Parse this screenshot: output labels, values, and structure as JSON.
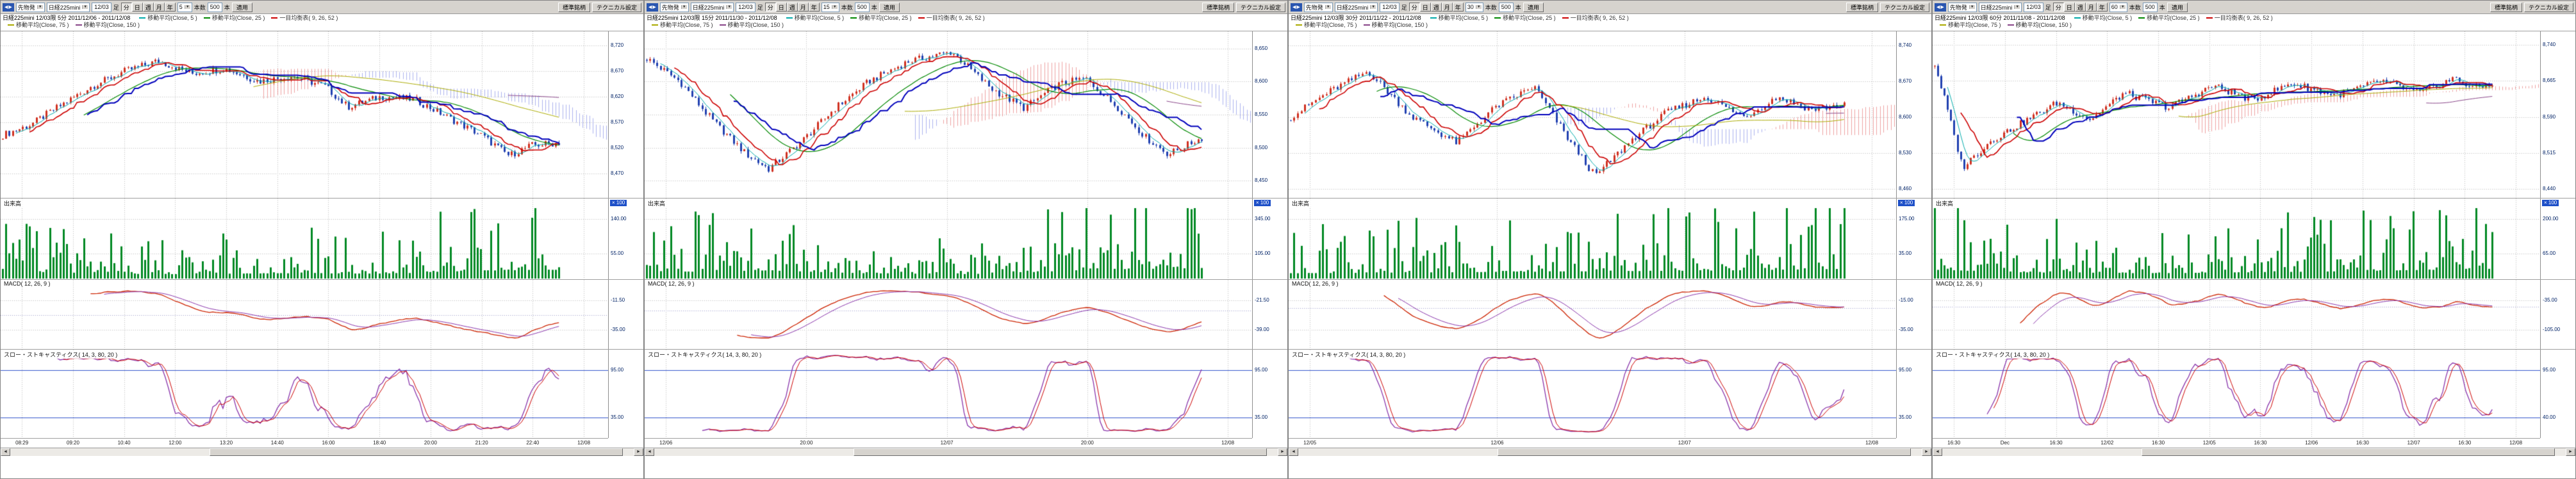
{
  "colors": {
    "up_candle": "#d03020",
    "down_candle": "#2040b0",
    "ma5": "#00aaaa",
    "ma25": "#008800",
    "ma75": "#aaaa00",
    "ma150": "#884488",
    "tenkan": "#cc0000",
    "kijun": "#0000bb",
    "cloud_up": "rgba(220,70,70,0.5)",
    "cloud_down": "rgba(90,100,220,0.5)",
    "volume": "#008822",
    "macd_line": "#cc2200",
    "macd_signal": "#8833aa",
    "stoch_k": "#8833aa",
    "stoch_d": "#cc0000",
    "level_line": "#3355cc",
    "grid": "#bcbcbc",
    "badge_bg": "#1e50c8"
  },
  "toolbar": {
    "nav_back": "◀",
    "nav_fwd": "▶",
    "category": "先物発",
    "date_value": "12/03",
    "ashi_label": "足",
    "period_buttons": [
      "分",
      "日",
      "週",
      "月",
      "年"
    ],
    "bars_label": "本数",
    "bars_value": "500",
    "bars_unit": "本",
    "apply_label": "適用",
    "preset_label": "標準銘柄",
    "settings_label": "テクニカル設定"
  },
  "section_labels": {
    "volume": "出来高",
    "macd": "MACD( 12, 26, 9 )",
    "stoch": "スロー・ストキャスティクス( 14, 3, 80, 20 )",
    "scale_badge": "× 100"
  },
  "legend_indicators": [
    {
      "label": "移動平均(Close, 5 )",
      "color": "#00aaaa"
    },
    {
      "label": "移動平均(Close, 25 )",
      "color": "#008800"
    },
    {
      "label": "一目均衡表( 9, 26, 52 )",
      "color": "#cc0000"
    },
    {
      "label": "移動平均(Close, 75 )",
      "color": "#aaaa00"
    },
    {
      "label": "移動平均(Close, 150 )",
      "color": "#884488"
    }
  ],
  "chart_data": {
    "note": "four linked candlestick chart windows of Nikkei 225 mini futures, Dec 2011 contract, at 5/15/30/60 minute timeframes with volume, MACD and slow stochastics panes"
  },
  "panels": [
    {
      "instrument": "日経225mini",
      "timeframe_value": "5",
      "title": "日経225mini 12/03限 5分 2011/12/06 - 2011/12/08",
      "price_range": [
        8430,
        8740
      ],
      "price_ticks": [
        "8,720",
        "8,670",
        "8,620",
        "8,570",
        "8,520",
        "8,470"
      ],
      "x_labels": [
        "08:29",
        "09:20",
        "10:40",
        "12:00",
        "13:20",
        "14:40",
        "16:00",
        "18:40",
        "20:00",
        "21:20",
        "22:40",
        "12/08"
      ],
      "vol_ticks": [
        "140.00",
        "55.00"
      ],
      "macd_ticks": [
        "-11.50",
        "-35.00"
      ],
      "stoch_ticks": [
        "95.00",
        "35.00"
      ],
      "n_candles": 165,
      "close_anchors": [
        [
          0,
          8545
        ],
        [
          0.05,
          8565
        ],
        [
          0.1,
          8600
        ],
        [
          0.16,
          8640
        ],
        [
          0.22,
          8670
        ],
        [
          0.28,
          8690
        ],
        [
          0.34,
          8665
        ],
        [
          0.4,
          8675
        ],
        [
          0.46,
          8650
        ],
        [
          0.52,
          8660
        ],
        [
          0.58,
          8640
        ],
        [
          0.62,
          8600
        ],
        [
          0.68,
          8620
        ],
        [
          0.74,
          8615
        ],
        [
          0.8,
          8580
        ],
        [
          0.86,
          8545
        ],
        [
          0.91,
          8505
        ],
        [
          0.95,
          8525
        ],
        [
          1,
          8530
        ]
      ],
      "vol_anchors": [
        [
          0,
          0.55
        ],
        [
          0.1,
          0.3
        ],
        [
          0.3,
          0.25
        ],
        [
          0.5,
          0.3
        ],
        [
          0.7,
          0.28
        ],
        [
          0.85,
          0.45
        ],
        [
          1,
          0.5
        ]
      ]
    },
    {
      "instrument": "日経225mini",
      "timeframe_value": "15",
      "title": "日経225mini 12/03限 15分 2011/11/30 - 2011/12/08",
      "price_range": [
        8430,
        8670
      ],
      "price_ticks": [
        "8,650",
        "8,600",
        "8,550",
        "8,500",
        "8,450"
      ],
      "x_labels": [
        "12/06",
        "20:00",
        "12/07",
        "20:00",
        "12/08"
      ],
      "vol_ticks": [
        "345.00",
        "105.00"
      ],
      "macd_ticks": [
        "-21.50",
        "-39.00"
      ],
      "stoch_ticks": [
        "95.00",
        "35.00"
      ],
      "n_candles": 160,
      "close_anchors": [
        [
          0,
          8635
        ],
        [
          0.06,
          8600
        ],
        [
          0.12,
          8540
        ],
        [
          0.18,
          8490
        ],
        [
          0.22,
          8468
        ],
        [
          0.28,
          8510
        ],
        [
          0.34,
          8560
        ],
        [
          0.4,
          8600
        ],
        [
          0.47,
          8630
        ],
        [
          0.55,
          8645
        ],
        [
          0.62,
          8590
        ],
        [
          0.68,
          8560
        ],
        [
          0.74,
          8595
        ],
        [
          0.79,
          8605
        ],
        [
          0.85,
          8560
        ],
        [
          0.9,
          8515
        ],
        [
          0.94,
          8490
        ],
        [
          1,
          8515
        ]
      ],
      "vol_anchors": [
        [
          0,
          0.35
        ],
        [
          0.2,
          0.45
        ],
        [
          0.4,
          0.3
        ],
        [
          0.6,
          0.25
        ],
        [
          0.8,
          0.5
        ],
        [
          1,
          0.6
        ]
      ]
    },
    {
      "instrument": "日経225mini",
      "timeframe_value": "30",
      "title": "日経225mini 12/03限 30分 2011/11/22 - 2011/12/08",
      "price_range": [
        8450,
        8760
      ],
      "price_ticks": [
        "8,740",
        "8,670",
        "8,600",
        "8,530",
        "8,460"
      ],
      "x_labels": [
        "12/05",
        "12/06",
        "12/07",
        "12/08"
      ],
      "vol_ticks": [
        "175.00",
        "35.00"
      ],
      "macd_ticks": [
        "-15.00",
        "-35.00"
      ],
      "stoch_ticks": [
        "95.00",
        "35.00"
      ],
      "n_candles": 155,
      "close_anchors": [
        [
          0,
          8600
        ],
        [
          0.07,
          8650
        ],
        [
          0.14,
          8690
        ],
        [
          0.22,
          8600
        ],
        [
          0.3,
          8550
        ],
        [
          0.37,
          8620
        ],
        [
          0.44,
          8660
        ],
        [
          0.5,
          8560
        ],
        [
          0.55,
          8485
        ],
        [
          0.62,
          8560
        ],
        [
          0.68,
          8610
        ],
        [
          0.75,
          8640
        ],
        [
          0.82,
          8600
        ],
        [
          0.88,
          8640
        ],
        [
          0.94,
          8615
        ],
        [
          1,
          8625
        ]
      ],
      "vol_anchors": [
        [
          0,
          0.3
        ],
        [
          0.25,
          0.35
        ],
        [
          0.5,
          0.4
        ],
        [
          0.75,
          0.45
        ],
        [
          1,
          0.55
        ]
      ]
    },
    {
      "instrument": "日経225mini",
      "timeframe_value": "60",
      "title": "日経225mini 12/03限 60分 2011/11/08 - 2011/12/08",
      "price_range": [
        8430,
        8760
      ],
      "price_ticks": [
        "8,740",
        "8,665",
        "8,590",
        "8,515",
        "8,440"
      ],
      "x_labels": [
        "16:30",
        "Dec",
        "16:30",
        "12/02",
        "16:30",
        "12/05",
        "16:30",
        "12/06",
        "16:30",
        "12/07",
        "16:30",
        "12/08"
      ],
      "vol_ticks": [
        "200.00",
        "65.00"
      ],
      "macd_ticks": [
        "-35.00",
        "-105.00"
      ],
      "stoch_ticks": [
        "95.00",
        "40.00"
      ],
      "n_candles": 170,
      "close_anchors": [
        [
          0,
          8700
        ],
        [
          0.02,
          8620
        ],
        [
          0.05,
          8485
        ],
        [
          0.1,
          8540
        ],
        [
          0.16,
          8580
        ],
        [
          0.22,
          8620
        ],
        [
          0.28,
          8585
        ],
        [
          0.34,
          8640
        ],
        [
          0.42,
          8610
        ],
        [
          0.5,
          8655
        ],
        [
          0.57,
          8625
        ],
        [
          0.64,
          8660
        ],
        [
          0.72,
          8635
        ],
        [
          0.8,
          8665
        ],
        [
          0.87,
          8640
        ],
        [
          0.93,
          8670
        ],
        [
          0.97,
          8650
        ],
        [
          1,
          8660
        ]
      ],
      "vol_anchors": [
        [
          0,
          0.5
        ],
        [
          0.15,
          0.35
        ],
        [
          0.4,
          0.3
        ],
        [
          0.7,
          0.4
        ],
        [
          1,
          0.55
        ]
      ]
    }
  ]
}
